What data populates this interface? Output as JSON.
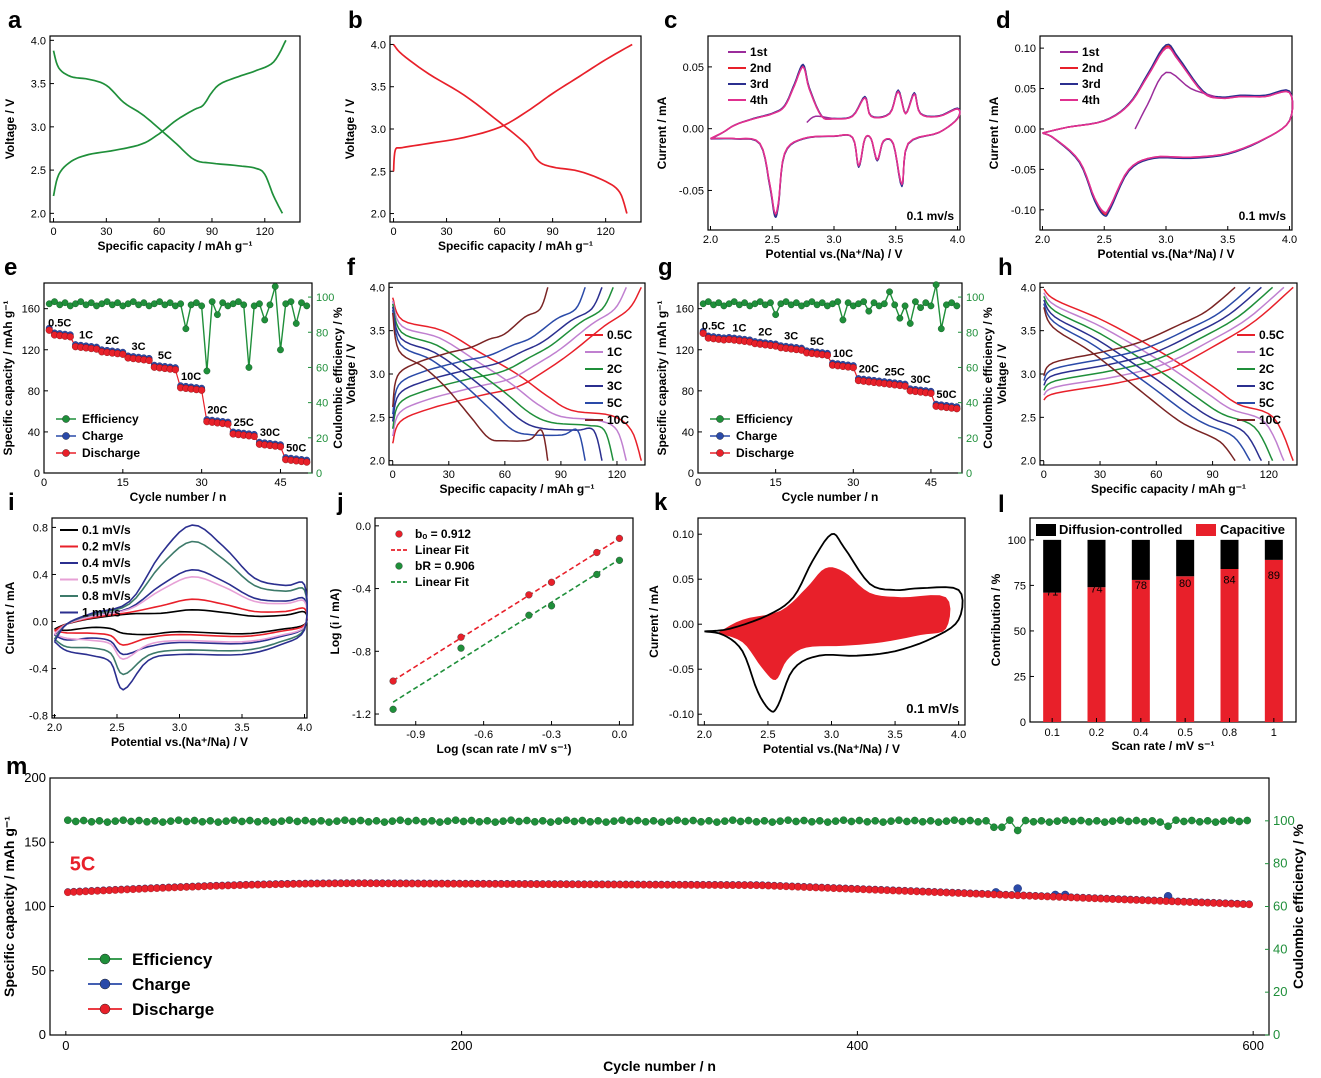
{
  "colors": {
    "green": "#1f8f3a",
    "red": "#e8202a",
    "blue": "#2a4aa8",
    "black": "#000000",
    "navy": "#2b2f8f",
    "purple": "#9b2c9b",
    "magenta": "#e0308f",
    "pink": "#e7a0d6",
    "teal": "#3d7a6a",
    "brown": "#7a2424",
    "violet": "#c080d0"
  },
  "chart_data": [
    {
      "id": "a",
      "panel_label": "a",
      "type": "line",
      "xlabel": "Specific capacity / mAh g⁻¹",
      "ylabel": "Voltage / V",
      "xlim": [
        -2,
        140
      ],
      "ylim": [
        1.9,
        4.05
      ],
      "xticks": [
        0,
        30,
        60,
        90,
        120
      ],
      "yticks": [
        2.0,
        2.5,
        3.0,
        3.5,
        4.0
      ],
      "series": [
        {
          "color": "#1f8f3a",
          "points": [
            [
              0,
              2.2
            ],
            [
              3,
              2.45
            ],
            [
              10,
              2.6
            ],
            [
              20,
              2.68
            ],
            [
              35,
              2.73
            ],
            [
              50,
              2.8
            ],
            [
              60,
              2.92
            ],
            [
              70,
              3.08
            ],
            [
              80,
              3.2
            ],
            [
              85,
              3.25
            ],
            [
              90,
              3.4
            ],
            [
              95,
              3.5
            ],
            [
              105,
              3.58
            ],
            [
              115,
              3.65
            ],
            [
              125,
              3.75
            ],
            [
              132,
              4.0
            ]
          ]
        },
        {
          "color": "#1f8f3a",
          "points": [
            [
              0,
              3.88
            ],
            [
              3,
              3.68
            ],
            [
              10,
              3.58
            ],
            [
              20,
              3.55
            ],
            [
              30,
              3.48
            ],
            [
              40,
              3.28
            ],
            [
              50,
              3.15
            ],
            [
              60,
              2.98
            ],
            [
              70,
              2.8
            ],
            [
              80,
              2.62
            ],
            [
              90,
              2.58
            ],
            [
              105,
              2.55
            ],
            [
              115,
              2.52
            ],
            [
              120,
              2.45
            ],
            [
              125,
              2.2
            ],
            [
              130,
              2.0
            ]
          ]
        }
      ]
    },
    {
      "id": "b",
      "panel_label": "b",
      "type": "line",
      "xlabel": "Specific capacity / mAh g⁻¹",
      "ylabel": "Voltage / V",
      "xlim": [
        -2,
        140
      ],
      "ylim": [
        1.9,
        4.1
      ],
      "xticks": [
        0,
        30,
        60,
        90,
        120
      ],
      "yticks": [
        2.0,
        2.5,
        3.0,
        3.5,
        4.0
      ],
      "series": [
        {
          "color": "#e8202a",
          "points": [
            [
              0,
              2.5
            ],
            [
              1,
              2.75
            ],
            [
              5,
              2.78
            ],
            [
              20,
              2.83
            ],
            [
              40,
              2.9
            ],
            [
              60,
              3.02
            ],
            [
              75,
              3.2
            ],
            [
              90,
              3.42
            ],
            [
              105,
              3.62
            ],
            [
              120,
              3.82
            ],
            [
              135,
              4.0
            ]
          ]
        },
        {
          "color": "#e8202a",
          "points": [
            [
              0,
              4.0
            ],
            [
              5,
              3.88
            ],
            [
              20,
              3.65
            ],
            [
              40,
              3.4
            ],
            [
              60,
              3.08
            ],
            [
              75,
              2.82
            ],
            [
              82,
              2.62
            ],
            [
              90,
              2.55
            ],
            [
              105,
              2.5
            ],
            [
              120,
              2.38
            ],
            [
              128,
              2.25
            ],
            [
              132,
              2.0
            ]
          ]
        }
      ]
    },
    {
      "id": "c",
      "panel_label": "c",
      "type": "line",
      "xlabel": "Potential vs.(Na⁺/Na) / V",
      "ylabel": "Current / mA",
      "xlim": [
        1.98,
        4.02
      ],
      "ylim": [
        -0.082,
        0.075
      ],
      "xticks": [
        2.0,
        2.5,
        3.0,
        3.5,
        4.0
      ],
      "yticks": [
        -0.05,
        0.0,
        0.05
      ],
      "annotation": "0.1 mv/s",
      "legend": [
        "1st",
        "2nd",
        "3rd",
        "4th"
      ],
      "legend_colors": [
        "#9b2c9b",
        "#e8202a",
        "#2b2f8f",
        "#e0308f"
      ],
      "cycle_points": [
        [
          2.0,
          -0.008
        ],
        [
          2.1,
          -0.003
        ],
        [
          2.2,
          0.003
        ],
        [
          2.35,
          0.008
        ],
        [
          2.5,
          0.012
        ],
        [
          2.6,
          0.018
        ],
        [
          2.68,
          0.035
        ],
        [
          2.75,
          0.05
        ],
        [
          2.8,
          0.032
        ],
        [
          2.9,
          0.01
        ],
        [
          3.0,
          0.008
        ],
        [
          3.15,
          0.01
        ],
        [
          3.25,
          0.025
        ],
        [
          3.3,
          0.01
        ],
        [
          3.45,
          0.012
        ],
        [
          3.52,
          0.03
        ],
        [
          3.58,
          0.012
        ],
        [
          3.65,
          0.028
        ],
        [
          3.7,
          0.012
        ],
        [
          3.85,
          0.01
        ],
        [
          4.0,
          0.016
        ],
        [
          4.0,
          0.008
        ],
        [
          3.85,
          -0.003
        ],
        [
          3.6,
          -0.012
        ],
        [
          3.55,
          -0.045
        ],
        [
          3.48,
          -0.012
        ],
        [
          3.4,
          -0.01
        ],
        [
          3.35,
          -0.025
        ],
        [
          3.3,
          -0.008
        ],
        [
          3.25,
          -0.008
        ],
        [
          3.2,
          -0.03
        ],
        [
          3.15,
          -0.007
        ],
        [
          3.0,
          -0.006
        ],
        [
          2.75,
          -0.008
        ],
        [
          2.6,
          -0.02
        ],
        [
          2.55,
          -0.06
        ],
        [
          2.52,
          -0.068
        ],
        [
          2.48,
          -0.045
        ],
        [
          2.4,
          -0.012
        ],
        [
          2.2,
          -0.008
        ],
        [
          2.0,
          -0.008
        ]
      ],
      "first_start": [
        [
          2.78,
          0.005
        ],
        [
          2.85,
          0.01
        ],
        [
          3.0,
          0.008
        ]
      ]
    },
    {
      "id": "d",
      "panel_label": "d",
      "type": "line",
      "xlabel": "Potential vs.(Na⁺/Na) / V",
      "ylabel": "Current / mA",
      "xlim": [
        1.98,
        4.02
      ],
      "ylim": [
        -0.125,
        0.115
      ],
      "xticks": [
        2.0,
        2.5,
        3.0,
        3.5,
        4.0
      ],
      "yticks": [
        -0.1,
        -0.05,
        0.0,
        0.05,
        0.1
      ],
      "annotation": "0.1 mv/s",
      "legend": [
        "1st",
        "2nd",
        "3rd",
        "4th"
      ],
      "legend_colors": [
        "#9b2c9b",
        "#e8202a",
        "#2b2f8f",
        "#e0308f"
      ],
      "cycle_points": [
        [
          2.0,
          -0.005
        ],
        [
          2.2,
          0.002
        ],
        [
          2.5,
          0.01
        ],
        [
          2.7,
          0.03
        ],
        [
          2.85,
          0.065
        ],
        [
          3.0,
          0.1
        ],
        [
          3.1,
          0.085
        ],
        [
          3.3,
          0.045
        ],
        [
          3.45,
          0.038
        ],
        [
          3.6,
          0.04
        ],
        [
          3.8,
          0.04
        ],
        [
          4.0,
          0.045
        ],
        [
          4.0,
          0.01
        ],
        [
          3.8,
          -0.012
        ],
        [
          3.5,
          -0.03
        ],
        [
          3.2,
          -0.035
        ],
        [
          2.9,
          -0.035
        ],
        [
          2.7,
          -0.05
        ],
        [
          2.55,
          -0.095
        ],
        [
          2.5,
          -0.103
        ],
        [
          2.42,
          -0.085
        ],
        [
          2.3,
          -0.04
        ],
        [
          2.1,
          -0.012
        ],
        [
          2.0,
          -0.005
        ]
      ],
      "first_start": [
        [
          2.75,
          0.0
        ],
        [
          2.85,
          0.03
        ],
        [
          3.0,
          0.07
        ],
        [
          3.2,
          0.05
        ],
        [
          3.4,
          0.04
        ]
      ]
    },
    {
      "id": "e",
      "panel_label": "e",
      "type": "scatter",
      "xlabel": "Cycle number / n",
      "ylabel": "Specific capacity / mAh g⁻¹",
      "y2label": "Coulombic efficiency / %",
      "xlim": [
        0,
        51
      ],
      "ylim": [
        0,
        185
      ],
      "y2lim": [
        0,
        108
      ],
      "xticks": [
        0,
        15,
        30,
        45
      ],
      "yticks": [
        0,
        40,
        80,
        120,
        160
      ],
      "y2ticks": [
        0,
        20,
        40,
        60,
        80,
        100
      ],
      "rate_labels": [
        "0.5C",
        "1C",
        "2C",
        "3C",
        "5C",
        "10C",
        "20C",
        "25C",
        "30C",
        "50C"
      ],
      "legend": [
        "Efficiency",
        "Charge",
        "Discharge"
      ],
      "plateaus": [
        135,
        123,
        118,
        112,
        103,
        83,
        50,
        38,
        28,
        13
      ]
    },
    {
      "id": "f",
      "panel_label": "f",
      "type": "line",
      "xlabel": "Specific capacity / mAh g⁻¹",
      "ylabel": "Voltage / V",
      "xlim": [
        -2,
        135
      ],
      "ylim": [
        1.95,
        4.05
      ],
      "xticks": [
        0,
        30,
        60,
        90,
        120
      ],
      "yticks": [
        2.0,
        2.5,
        3.0,
        3.5,
        4.0
      ],
      "legend": [
        "0.5C",
        "1C",
        "2C",
        "3C",
        "5C",
        "10C"
      ],
      "legend_colors": [
        "#e8202a",
        "#c080d0",
        "#1f8f3a",
        "#2b2f8f",
        "#2a4aa8",
        "#7a2424"
      ],
      "capacities": [
        133,
        125,
        118,
        112,
        103,
        83
      ]
    },
    {
      "id": "g",
      "panel_label": "g",
      "type": "scatter",
      "xlabel": "Cycle number / n",
      "ylabel": "Specific capacity / mAh g⁻¹",
      "y2label": "Coulombic efficiency / %",
      "xlim": [
        0,
        51
      ],
      "ylim": [
        0,
        185
      ],
      "y2lim": [
        0,
        108
      ],
      "xticks": [
        0,
        15,
        30,
        45
      ],
      "yticks": [
        0,
        40,
        80,
        120,
        160
      ],
      "y2ticks": [
        0,
        20,
        40,
        60,
        80,
        100
      ],
      "rate_labels": [
        "0.5C",
        "1C",
        "2C",
        "3C",
        "5C",
        "10C",
        "20C",
        "25C",
        "30C",
        "50C"
      ],
      "legend": [
        "Efficiency",
        "Charge",
        "Discharge"
      ],
      "plateaus": [
        132,
        130,
        126,
        122,
        117,
        105,
        90,
        87,
        80,
        65
      ]
    },
    {
      "id": "h",
      "panel_label": "h",
      "type": "line",
      "xlabel": "Specific capacity / mAh g⁻¹",
      "ylabel": "Voltage / V",
      "xlim": [
        -2,
        135
      ],
      "ylim": [
        1.95,
        4.05
      ],
      "xticks": [
        0,
        30,
        60,
        90,
        120
      ],
      "yticks": [
        2.0,
        2.5,
        3.0,
        3.5,
        4.0
      ],
      "legend": [
        "0.5C",
        "1C",
        "2C",
        "3C",
        "5C",
        "10C"
      ],
      "legend_colors": [
        "#e8202a",
        "#c080d0",
        "#1f8f3a",
        "#2b2f8f",
        "#2a4aa8",
        "#7a2424"
      ],
      "capacities": [
        133,
        128,
        122,
        116,
        110,
        102
      ]
    },
    {
      "id": "i",
      "panel_label": "i",
      "type": "line",
      "xlabel": "Potential vs.(Na⁺/Na) / V",
      "ylabel": "Current / mA",
      "xlim": [
        1.98,
        4.02
      ],
      "ylim": [
        -0.82,
        0.88
      ],
      "xticks": [
        2.0,
        2.5,
        3.0,
        3.5,
        4.0
      ],
      "yticks": [
        -0.8,
        -0.4,
        0.0,
        0.4,
        0.8
      ],
      "legend": [
        "0.1 mV/s",
        "0.2 mV/s",
        "0.4 mV/s",
        "0.5 mV/s",
        "0.8 mV/s",
        "1 mV/s"
      ],
      "legend_colors": [
        "#000000",
        "#e8202a",
        "#2b2f8f",
        "#e7a0d6",
        "#3d7a6a",
        "#2b2f8f"
      ],
      "peaks": [
        0.1,
        0.19,
        0.44,
        0.38,
        0.68,
        0.82
      ],
      "valleys": [
        -0.1,
        -0.2,
        -0.28,
        -0.32,
        -0.45,
        -0.58
      ]
    },
    {
      "id": "j",
      "panel_label": "j",
      "type": "scatter",
      "xlabel": "Log (scan rate / mV s⁻¹)",
      "ylabel": "Log (i / mA)",
      "xlim": [
        -1.08,
        0.06
      ],
      "ylim": [
        -1.27,
        0.05
      ],
      "xticks": [
        -0.9,
        -0.6,
        -0.3,
        0.0
      ],
      "yticks": [
        -1.2,
        -0.8,
        -0.4,
        0.0
      ],
      "legend": [
        "bₒ = 0.912",
        "Linear Fit",
        "bR = 0.906",
        "Linear Fit"
      ],
      "series": [
        {
          "name": "bₒ = 0.912",
          "color": "#e8202a",
          "x": [
            -1.0,
            -0.7,
            -0.4,
            -0.3,
            -0.1,
            0.0
          ],
          "y": [
            -0.99,
            -0.71,
            -0.44,
            -0.36,
            -0.17,
            -0.08
          ]
        },
        {
          "name": "bR = 0.906",
          "color": "#1f8f3a",
          "x": [
            -1.0,
            -0.7,
            -0.4,
            -0.3,
            -0.1,
            0.0
          ],
          "y": [
            -1.17,
            -0.78,
            -0.57,
            -0.51,
            -0.31,
            -0.22
          ]
        }
      ]
    },
    {
      "id": "k",
      "panel_label": "k",
      "type": "area",
      "xlabel": "Potential vs.(Na⁺/Na) / V",
      "ylabel": "Current / mA",
      "xlim": [
        1.95,
        4.05
      ],
      "ylim": [
        -0.112,
        0.118
      ],
      "xticks": [
        2.0,
        2.5,
        3.0,
        3.5,
        4.0
      ],
      "yticks": [
        -0.1,
        -0.05,
        0.0,
        0.05,
        0.1
      ],
      "annotation": "0.1 mV/s"
    },
    {
      "id": "l",
      "panel_label": "l",
      "type": "bar",
      "xlabel": "Scan rate / mV s⁻¹",
      "ylabel": "Contribution / %",
      "categories": [
        "0.1",
        "0.2",
        "0.4",
        "0.5",
        "0.8",
        "1"
      ],
      "ylim": [
        0,
        112
      ],
      "yticks": [
        0,
        25,
        50,
        75,
        100
      ],
      "series": [
        {
          "name": "Capacitive",
          "color": "#e8202a",
          "values": [
            71,
            74,
            78,
            80,
            84,
            89
          ]
        },
        {
          "name": "Diffusion-controlled",
          "color": "#000000",
          "values": [
            29,
            26,
            22,
            20,
            16,
            11
          ]
        }
      ],
      "value_labels": [
        "71",
        "74",
        "78",
        "80",
        "84",
        "89"
      ],
      "legend": [
        "Diffusion-controlled",
        "Capacitive"
      ]
    },
    {
      "id": "m",
      "panel_label": "m",
      "type": "scatter",
      "xlabel": "Cycle number / n",
      "ylabel": "Specific capacity / mAh g⁻¹",
      "y2label": "Coulombic efficiency / %",
      "xlim": [
        -8,
        608
      ],
      "ylim": [
        0,
        200
      ],
      "y2lim": [
        0,
        120
      ],
      "xticks": [
        0,
        200,
        400,
        600
      ],
      "yticks": [
        0,
        50,
        100,
        150,
        200
      ],
      "y2ticks": [
        0,
        20,
        40,
        60,
        80,
        100
      ],
      "rate_label": "5C",
      "legend": [
        "Efficiency",
        "Charge",
        "Discharge"
      ]
    }
  ]
}
